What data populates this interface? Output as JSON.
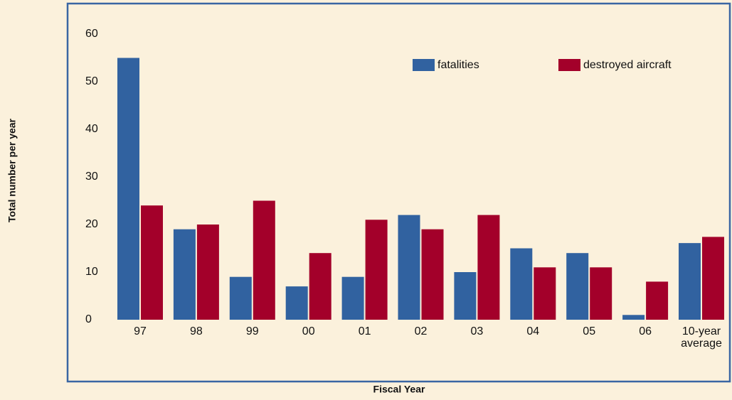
{
  "chart_data": {
    "type": "bar",
    "categories": [
      "97",
      "98",
      "99",
      "00",
      "01",
      "02",
      "03",
      "04",
      "05",
      "06",
      "10-year average"
    ],
    "series": [
      {
        "name": "fatalities",
        "color": "#3162a0",
        "values": [
          55,
          19,
          9,
          7,
          9,
          22,
          10,
          15,
          14,
          1,
          16.1
        ]
      },
      {
        "name": "destroyed aircraft",
        "color": "#a3002a",
        "values": [
          24,
          20,
          25,
          14,
          21,
          19,
          22,
          11,
          11,
          8,
          17.4
        ]
      }
    ],
    "ylim": [
      0,
      60
    ],
    "yticks": [
      0,
      10,
      20,
      30,
      40,
      50,
      60
    ],
    "y_label": "Total number per year",
    "x_label": "Fiscal Year",
    "grid": false,
    "legend": "top-right"
  }
}
